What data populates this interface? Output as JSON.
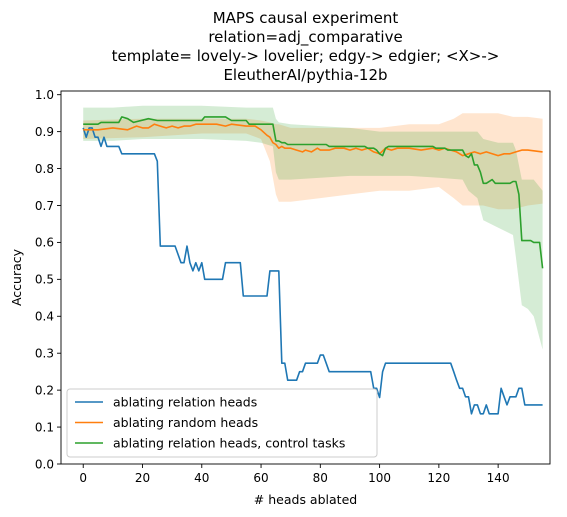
{
  "chart_data": {
    "type": "line",
    "title_lines": [
      "MAPS causal experiment",
      "relation=adj_comparative",
      "template= lovely-> lovelier; edgy-> edgier; <X>->",
      "EleutherAI/pythia-12b"
    ],
    "xlabel": "# heads ablated",
    "ylabel": "Accuracy",
    "xlim": [
      -7.5,
      157.5
    ],
    "ylim": [
      0.0,
      1.01
    ],
    "xticks": [
      0,
      20,
      40,
      60,
      80,
      100,
      120,
      140
    ],
    "yticks": [
      0.0,
      0.1,
      0.2,
      0.3,
      0.4,
      0.5,
      0.6,
      0.7,
      0.8,
      0.9,
      1.0
    ],
    "grid": false,
    "legend_position": "lower-left",
    "series": [
      {
        "name": "ablating relation heads",
        "color": "#1f77b4",
        "points": [
          [
            0,
            0.91
          ],
          [
            1,
            0.885
          ],
          [
            2,
            0.91
          ],
          [
            3,
            0.91
          ],
          [
            4,
            0.885
          ],
          [
            5,
            0.885
          ],
          [
            6,
            0.86
          ],
          [
            7,
            0.885
          ],
          [
            8,
            0.86
          ],
          [
            9,
            0.86
          ],
          [
            10,
            0.86
          ],
          [
            12,
            0.86
          ],
          [
            13,
            0.84
          ],
          [
            24,
            0.84
          ],
          [
            25,
            0.82
          ],
          [
            26,
            0.59
          ],
          [
            31,
            0.59
          ],
          [
            33,
            0.545
          ],
          [
            34,
            0.545
          ],
          [
            35,
            0.59
          ],
          [
            36,
            0.545
          ],
          [
            37,
            0.523
          ],
          [
            38,
            0.545
          ],
          [
            39,
            0.523
          ],
          [
            40,
            0.545
          ],
          [
            41,
            0.5
          ],
          [
            47,
            0.5
          ],
          [
            48,
            0.545
          ],
          [
            53,
            0.545
          ],
          [
            54,
            0.455
          ],
          [
            60,
            0.455
          ],
          [
            62,
            0.455
          ],
          [
            63,
            0.523
          ],
          [
            66,
            0.523
          ],
          [
            67,
            0.273
          ],
          [
            68,
            0.273
          ],
          [
            69,
            0.227
          ],
          [
            72,
            0.227
          ],
          [
            73,
            0.25
          ],
          [
            74,
            0.25
          ],
          [
            75,
            0.273
          ],
          [
            79,
            0.273
          ],
          [
            80,
            0.295
          ],
          [
            81,
            0.295
          ],
          [
            82,
            0.273
          ],
          [
            83,
            0.25
          ],
          [
            97,
            0.25
          ],
          [
            98,
            0.205
          ],
          [
            99,
            0.205
          ],
          [
            100,
            0.18
          ],
          [
            101,
            0.25
          ],
          [
            102,
            0.273
          ],
          [
            124,
            0.273
          ],
          [
            125,
            0.25
          ],
          [
            126,
            0.227
          ],
          [
            127,
            0.205
          ],
          [
            128,
            0.205
          ],
          [
            129,
            0.182
          ],
          [
            130,
            0.182
          ],
          [
            131,
            0.136
          ],
          [
            132,
            0.16
          ],
          [
            133,
            0.16
          ],
          [
            134,
            0.136
          ],
          [
            135,
            0.136
          ],
          [
            136,
            0.16
          ],
          [
            137,
            0.136
          ],
          [
            140,
            0.136
          ],
          [
            141,
            0.205
          ],
          [
            142,
            0.182
          ],
          [
            143,
            0.16
          ],
          [
            144,
            0.182
          ],
          [
            146,
            0.182
          ],
          [
            147,
            0.205
          ],
          [
            148,
            0.205
          ],
          [
            149,
            0.16
          ],
          [
            150,
            0.16
          ],
          [
            155,
            0.16
          ]
        ]
      },
      {
        "name": "ablating random heads",
        "color": "#ff7f0e",
        "points": [
          [
            0,
            0.905
          ],
          [
            5,
            0.905
          ],
          [
            10,
            0.91
          ],
          [
            15,
            0.905
          ],
          [
            18,
            0.915
          ],
          [
            20,
            0.91
          ],
          [
            22,
            0.91
          ],
          [
            24,
            0.92
          ],
          [
            26,
            0.915
          ],
          [
            28,
            0.91
          ],
          [
            30,
            0.915
          ],
          [
            32,
            0.91
          ],
          [
            34,
            0.915
          ],
          [
            36,
            0.915
          ],
          [
            38,
            0.92
          ],
          [
            40,
            0.92
          ],
          [
            42,
            0.92
          ],
          [
            45,
            0.92
          ],
          [
            48,
            0.915
          ],
          [
            50,
            0.92
          ],
          [
            55,
            0.915
          ],
          [
            58,
            0.915
          ],
          [
            60,
            0.905
          ],
          [
            62,
            0.89
          ],
          [
            63,
            0.885
          ],
          [
            64,
            0.87
          ],
          [
            65,
            0.865
          ],
          [
            66,
            0.855
          ],
          [
            67,
            0.86
          ],
          [
            68,
            0.855
          ],
          [
            70,
            0.855
          ],
          [
            72,
            0.85
          ],
          [
            74,
            0.845
          ],
          [
            75,
            0.85
          ],
          [
            77,
            0.845
          ],
          [
            79,
            0.855
          ],
          [
            80,
            0.85
          ],
          [
            83,
            0.85
          ],
          [
            85,
            0.855
          ],
          [
            88,
            0.855
          ],
          [
            90,
            0.85
          ],
          [
            92,
            0.855
          ],
          [
            94,
            0.85
          ],
          [
            96,
            0.855
          ],
          [
            98,
            0.845
          ],
          [
            100,
            0.84
          ],
          [
            102,
            0.855
          ],
          [
            104,
            0.85
          ],
          [
            106,
            0.855
          ],
          [
            110,
            0.855
          ],
          [
            114,
            0.85
          ],
          [
            118,
            0.855
          ],
          [
            120,
            0.85
          ],
          [
            122,
            0.855
          ],
          [
            124,
            0.85
          ],
          [
            126,
            0.845
          ],
          [
            128,
            0.835
          ],
          [
            130,
            0.84
          ],
          [
            132,
            0.845
          ],
          [
            134,
            0.84
          ],
          [
            136,
            0.845
          ],
          [
            138,
            0.84
          ],
          [
            140,
            0.835
          ],
          [
            142,
            0.84
          ],
          [
            144,
            0.84
          ],
          [
            146,
            0.845
          ],
          [
            148,
            0.85
          ],
          [
            150,
            0.85
          ],
          [
            155,
            0.845
          ]
        ],
        "band": [
          [
            0,
            0.88,
            0.93
          ],
          [
            20,
            0.885,
            0.935
          ],
          [
            40,
            0.895,
            0.935
          ],
          [
            55,
            0.895,
            0.935
          ],
          [
            60,
            0.88,
            0.93
          ],
          [
            63,
            0.82,
            0.925
          ],
          [
            65,
            0.73,
            0.92
          ],
          [
            66,
            0.71,
            0.92
          ],
          [
            70,
            0.71,
            0.91
          ],
          [
            80,
            0.72,
            0.91
          ],
          [
            90,
            0.73,
            0.91
          ],
          [
            100,
            0.74,
            0.91
          ],
          [
            110,
            0.74,
            0.92
          ],
          [
            120,
            0.75,
            0.92
          ],
          [
            125,
            0.72,
            0.935
          ],
          [
            128,
            0.7,
            0.95
          ],
          [
            135,
            0.7,
            0.95
          ],
          [
            140,
            0.69,
            0.95
          ],
          [
            145,
            0.69,
            0.94
          ],
          [
            150,
            0.7,
            0.94
          ],
          [
            155,
            0.705,
            0.935
          ]
        ]
      },
      {
        "name": "ablating relation heads, control tasks",
        "color": "#2ca02c",
        "points": [
          [
            0,
            0.92
          ],
          [
            5,
            0.92
          ],
          [
            6,
            0.925
          ],
          [
            10,
            0.925
          ],
          [
            12,
            0.925
          ],
          [
            13,
            0.94
          ],
          [
            15,
            0.935
          ],
          [
            17,
            0.925
          ],
          [
            22,
            0.935
          ],
          [
            25,
            0.93
          ],
          [
            40,
            0.93
          ],
          [
            41,
            0.94
          ],
          [
            48,
            0.94
          ],
          [
            50,
            0.93
          ],
          [
            55,
            0.93
          ],
          [
            56,
            0.92
          ],
          [
            64,
            0.92
          ],
          [
            65,
            0.875
          ],
          [
            66,
            0.875
          ],
          [
            67,
            0.87
          ],
          [
            68,
            0.87
          ],
          [
            69,
            0.865
          ],
          [
            82,
            0.865
          ],
          [
            83,
            0.86
          ],
          [
            95,
            0.86
          ],
          [
            96,
            0.855
          ],
          [
            98,
            0.855
          ],
          [
            99,
            0.85
          ],
          [
            100,
            0.84
          ],
          [
            101,
            0.835
          ],
          [
            102,
            0.855
          ],
          [
            103,
            0.86
          ],
          [
            118,
            0.86
          ],
          [
            119,
            0.855
          ],
          [
            122,
            0.855
          ],
          [
            123,
            0.85
          ],
          [
            128,
            0.85
          ],
          [
            129,
            0.835
          ],
          [
            130,
            0.83
          ],
          [
            131,
            0.84
          ],
          [
            132,
            0.81
          ],
          [
            133,
            0.81
          ],
          [
            134,
            0.79
          ],
          [
            135,
            0.76
          ],
          [
            136,
            0.76
          ],
          [
            138,
            0.77
          ],
          [
            139,
            0.76
          ],
          [
            144,
            0.76
          ],
          [
            145,
            0.765
          ],
          [
            146,
            0.765
          ],
          [
            147,
            0.73
          ],
          [
            148,
            0.605
          ],
          [
            149,
            0.605
          ],
          [
            150,
            0.605
          ],
          [
            151,
            0.605
          ],
          [
            152,
            0.6
          ],
          [
            153,
            0.6
          ],
          [
            154,
            0.6
          ],
          [
            155,
            0.53
          ]
        ],
        "band": [
          [
            0,
            0.875,
            0.965
          ],
          [
            10,
            0.875,
            0.965
          ],
          [
            20,
            0.88,
            0.97
          ],
          [
            40,
            0.88,
            0.97
          ],
          [
            55,
            0.875,
            0.965
          ],
          [
            60,
            0.87,
            0.965
          ],
          [
            64,
            0.86,
            0.965
          ],
          [
            65,
            0.79,
            0.935
          ],
          [
            66,
            0.77,
            0.925
          ],
          [
            70,
            0.77,
            0.92
          ],
          [
            80,
            0.775,
            0.915
          ],
          [
            90,
            0.78,
            0.91
          ],
          [
            100,
            0.78,
            0.9
          ],
          [
            110,
            0.78,
            0.9
          ],
          [
            120,
            0.775,
            0.9
          ],
          [
            128,
            0.77,
            0.9
          ],
          [
            130,
            0.74,
            0.9
          ],
          [
            133,
            0.72,
            0.9
          ],
          [
            135,
            0.66,
            0.88
          ],
          [
            140,
            0.64,
            0.87
          ],
          [
            145,
            0.62,
            0.87
          ],
          [
            146,
            0.56,
            0.85
          ],
          [
            148,
            0.43,
            0.77
          ],
          [
            150,
            0.42,
            0.77
          ],
          [
            152,
            0.4,
            0.77
          ],
          [
            155,
            0.31,
            0.74
          ]
        ]
      }
    ]
  }
}
